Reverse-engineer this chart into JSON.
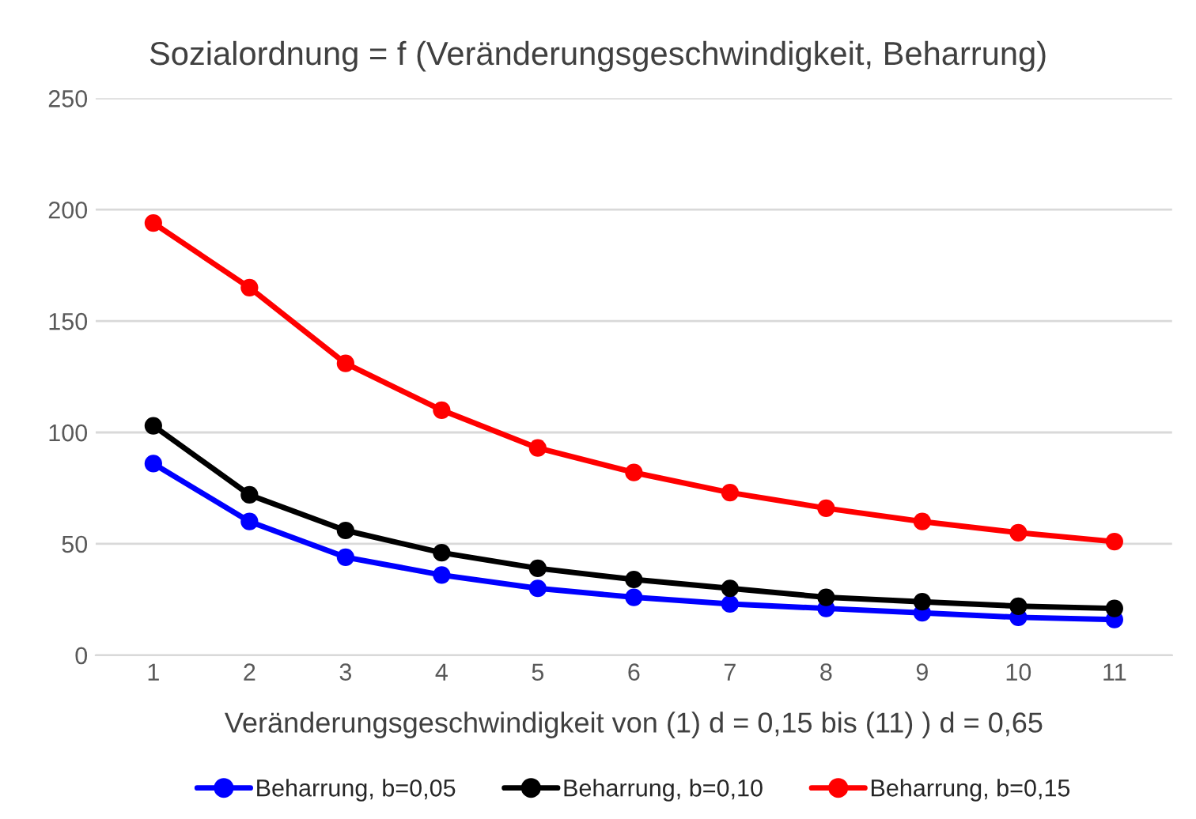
{
  "chart_data": {
    "type": "line",
    "title": "Sozialordnung = f (Veränderungsgeschwindigkeit, Beharrung)",
    "xlabel": "Veränderungsgeschwindigkeit von (1) d = 0,15 bis (11) ) d = 0,65",
    "categories": [
      "1",
      "2",
      "3",
      "4",
      "5",
      "6",
      "7",
      "8",
      "9",
      "10",
      "11"
    ],
    "series": [
      {
        "name": "Beharrung, b=0,05",
        "color": "#0000ff",
        "values": [
          86,
          60,
          44,
          36,
          30,
          26,
          23,
          21,
          19,
          17,
          16
        ]
      },
      {
        "name": "Beharrung, b=0,10",
        "color": "#000000",
        "values": [
          103,
          72,
          56,
          46,
          39,
          34,
          30,
          26,
          24,
          22,
          21
        ]
      },
      {
        "name": "Beharrung, b=0,15",
        "color": "#ff0000",
        "values": [
          194,
          165,
          131,
          110,
          93,
          82,
          73,
          66,
          60,
          55,
          51
        ]
      }
    ],
    "ylim": [
      0,
      250
    ],
    "yticks": [
      0,
      50,
      100,
      150,
      200,
      250
    ],
    "grid": "y",
    "legend": "bottom",
    "marker": "circle",
    "line_style": "solid"
  }
}
